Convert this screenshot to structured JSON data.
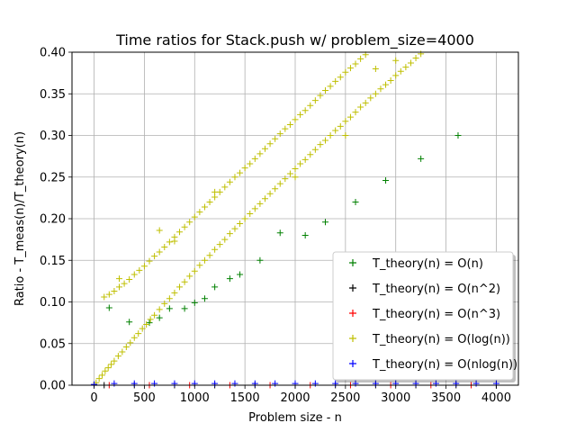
{
  "chart_data": {
    "type": "scatter",
    "title": "Time ratios for Stack.push w/ problem_size=4000",
    "xlabel": "Problem size - n",
    "ylabel": "Ratio - T_meas(n)/T_theory(n)",
    "xlim": [
      -220,
      4220
    ],
    "ylim": [
      0.0,
      0.4
    ],
    "xticks": [
      "0",
      "500",
      "1000",
      "1500",
      "2000",
      "2500",
      "3000",
      "3500",
      "4000"
    ],
    "yticks": [
      "0.00",
      "0.05",
      "0.10",
      "0.15",
      "0.20",
      "0.25",
      "0.30",
      "0.35",
      "0.40"
    ],
    "grid": true,
    "legend_position": "lower-right",
    "marker": "+",
    "series": [
      {
        "name": "T_theory(n) = O(n)",
        "color": "#008000",
        "points": [
          [
            150,
            0.093
          ],
          [
            350,
            0.076
          ],
          [
            550,
            0.075
          ],
          [
            650,
            0.081
          ],
          [
            750,
            0.092
          ],
          [
            900,
            0.092
          ],
          [
            1000,
            0.099
          ],
          [
            1100,
            0.104
          ],
          [
            1200,
            0.118
          ],
          [
            1350,
            0.128
          ],
          [
            1450,
            0.133
          ],
          [
            1650,
            0.15
          ],
          [
            1850,
            0.183
          ],
          [
            2100,
            0.18
          ],
          [
            2300,
            0.196
          ],
          [
            2600,
            0.22
          ],
          [
            2900,
            0.246
          ],
          [
            3250,
            0.272
          ],
          [
            3620,
            0.3
          ]
        ]
      },
      {
        "name": "T_theory(n) = O(n^2)",
        "color": "#000000",
        "points": [
          [
            100,
            0.0
          ],
          [
            400,
            0.0
          ],
          [
            800,
            0.0
          ],
          [
            1200,
            0.0
          ],
          [
            1600,
            0.0
          ],
          [
            2000,
            0.0
          ],
          [
            2400,
            0.0
          ],
          [
            2800,
            0.0
          ],
          [
            3200,
            0.0
          ],
          [
            3600,
            0.0
          ],
          [
            4000,
            0.0
          ]
        ]
      },
      {
        "name": "T_theory(n) = O(n^3)",
        "color": "#ff0000",
        "points": [
          [
            150,
            0.0
          ],
          [
            550,
            0.0
          ],
          [
            950,
            0.0
          ],
          [
            1350,
            0.0
          ],
          [
            1750,
            0.0
          ],
          [
            2150,
            0.0
          ],
          [
            2550,
            0.0
          ],
          [
            2950,
            0.0
          ],
          [
            3350,
            0.0
          ],
          [
            3750,
            0.0
          ]
        ]
      },
      {
        "name": "T_theory(n) = O(log(n))",
        "color": "#bfbf00",
        "points": [
          [
            20,
            0.003
          ],
          [
            50,
            0.008
          ],
          [
            80,
            0.012
          ],
          [
            110,
            0.017
          ],
          [
            140,
            0.021
          ],
          [
            170,
            0.025
          ],
          [
            200,
            0.029
          ],
          [
            240,
            0.035
          ],
          [
            280,
            0.04
          ],
          [
            320,
            0.046
          ],
          [
            360,
            0.051
          ],
          [
            400,
            0.057
          ],
          [
            440,
            0.062
          ],
          [
            480,
            0.068
          ],
          [
            520,
            0.073
          ],
          [
            560,
            0.079
          ],
          [
            600,
            0.084
          ],
          [
            650,
            0.091
          ],
          [
            700,
            0.098
          ],
          [
            750,
            0.104
          ],
          [
            800,
            0.111
          ],
          [
            850,
            0.118
          ],
          [
            900,
            0.124
          ],
          [
            950,
            0.131
          ],
          [
            1000,
            0.137
          ],
          [
            1050,
            0.144
          ],
          [
            1100,
            0.15
          ],
          [
            1150,
            0.156
          ],
          [
            1200,
            0.163
          ],
          [
            1250,
            0.169
          ],
          [
            1300,
            0.175
          ],
          [
            1350,
            0.182
          ],
          [
            1400,
            0.188
          ],
          [
            1450,
            0.194
          ],
          [
            1500,
            0.2
          ],
          [
            1550,
            0.206
          ],
          [
            1600,
            0.212
          ],
          [
            1650,
            0.218
          ],
          [
            1700,
            0.224
          ],
          [
            1750,
            0.23
          ],
          [
            1800,
            0.236
          ],
          [
            1850,
            0.242
          ],
          [
            1900,
            0.248
          ],
          [
            1950,
            0.254
          ],
          [
            2000,
            0.26
          ],
          [
            2050,
            0.266
          ],
          [
            2100,
            0.271
          ],
          [
            2150,
            0.277
          ],
          [
            2200,
            0.283
          ],
          [
            2250,
            0.289
          ],
          [
            2300,
            0.294
          ],
          [
            2350,
            0.3
          ],
          [
            2400,
            0.306
          ],
          [
            2450,
            0.311
          ],
          [
            2500,
            0.317
          ],
          [
            2550,
            0.322
          ],
          [
            2600,
            0.328
          ],
          [
            2650,
            0.334
          ],
          [
            2700,
            0.339
          ],
          [
            2750,
            0.345
          ],
          [
            2800,
            0.35
          ],
          [
            2850,
            0.356
          ],
          [
            2900,
            0.361
          ],
          [
            2950,
            0.366
          ],
          [
            3000,
            0.372
          ],
          [
            3050,
            0.377
          ],
          [
            3100,
            0.382
          ],
          [
            3150,
            0.387
          ],
          [
            3200,
            0.393
          ],
          [
            3250,
            0.398
          ],
          [
            100,
            0.106
          ],
          [
            150,
            0.109
          ],
          [
            200,
            0.113
          ],
          [
            250,
            0.118
          ],
          [
            300,
            0.122
          ],
          [
            350,
            0.127
          ],
          [
            400,
            0.133
          ],
          [
            450,
            0.138
          ],
          [
            500,
            0.143
          ],
          [
            550,
            0.149
          ],
          [
            600,
            0.155
          ],
          [
            650,
            0.16
          ],
          [
            700,
            0.166
          ],
          [
            750,
            0.172
          ],
          [
            800,
            0.178
          ],
          [
            850,
            0.184
          ],
          [
            900,
            0.19
          ],
          [
            950,
            0.196
          ],
          [
            1000,
            0.202
          ],
          [
            1050,
            0.208
          ],
          [
            1100,
            0.214
          ],
          [
            1150,
            0.22
          ],
          [
            1200,
            0.226
          ],
          [
            1250,
            0.232
          ],
          [
            1300,
            0.238
          ],
          [
            1350,
            0.244
          ],
          [
            1400,
            0.25
          ],
          [
            1450,
            0.255
          ],
          [
            1500,
            0.261
          ],
          [
            1550,
            0.266
          ],
          [
            1600,
            0.272
          ],
          [
            1650,
            0.278
          ],
          [
            1700,
            0.284
          ],
          [
            1750,
            0.29
          ],
          [
            1800,
            0.296
          ],
          [
            1850,
            0.302
          ],
          [
            1900,
            0.308
          ],
          [
            1950,
            0.313
          ],
          [
            2000,
            0.319
          ],
          [
            2050,
            0.325
          ],
          [
            2100,
            0.33
          ],
          [
            2150,
            0.336
          ],
          [
            2200,
            0.342
          ],
          [
            2250,
            0.348
          ],
          [
            2300,
            0.354
          ],
          [
            2350,
            0.359
          ],
          [
            2400,
            0.365
          ],
          [
            2450,
            0.37
          ],
          [
            2500,
            0.376
          ],
          [
            2550,
            0.381
          ],
          [
            2600,
            0.386
          ],
          [
            2650,
            0.392
          ],
          [
            2700,
            0.397
          ],
          [
            250,
            0.128
          ],
          [
            650,
            0.186
          ],
          [
            800,
            0.173
          ],
          [
            1200,
            0.232
          ],
          [
            2000,
            0.25
          ],
          [
            2500,
            0.3
          ],
          [
            2800,
            0.38
          ],
          [
            3000,
            0.39
          ]
        ]
      },
      {
        "name": "T_theory(n) = O(nlog(n))",
        "color": "#0000ff",
        "points": [
          [
            0,
            0.001
          ],
          [
            200,
            0.002
          ],
          [
            400,
            0.002
          ],
          [
            600,
            0.002
          ],
          [
            800,
            0.002
          ],
          [
            1000,
            0.002
          ],
          [
            1200,
            0.002
          ],
          [
            1400,
            0.002
          ],
          [
            1600,
            0.002
          ],
          [
            1800,
            0.002
          ],
          [
            2000,
            0.002
          ],
          [
            2200,
            0.002
          ],
          [
            2400,
            0.002
          ],
          [
            2600,
            0.002
          ],
          [
            2800,
            0.002
          ],
          [
            3000,
            0.002
          ],
          [
            3200,
            0.002
          ],
          [
            3400,
            0.002
          ],
          [
            3600,
            0.002
          ],
          [
            3800,
            0.002
          ],
          [
            4000,
            0.002
          ]
        ]
      }
    ]
  }
}
